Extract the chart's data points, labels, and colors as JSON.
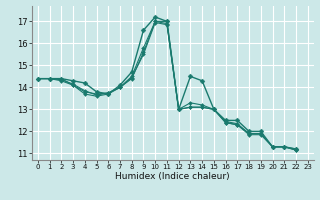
{
  "title": "",
  "xlabel": "Humidex (Indice chaleur)",
  "bg_color": "#cce8e8",
  "grid_color": "#ffffff",
  "line_color": "#1a7a6e",
  "xlim": [
    -0.5,
    23.5
  ],
  "ylim": [
    10.7,
    17.7
  ],
  "yticks": [
    11,
    12,
    13,
    14,
    15,
    16,
    17
  ],
  "xticks": [
    0,
    1,
    2,
    3,
    4,
    5,
    6,
    7,
    8,
    9,
    10,
    11,
    12,
    13,
    14,
    15,
    16,
    17,
    18,
    19,
    20,
    21,
    22,
    23
  ],
  "series": [
    [
      14.4,
      14.4,
      14.4,
      14.3,
      14.2,
      13.8,
      13.7,
      14.1,
      14.7,
      16.6,
      17.2,
      17.0,
      13.0,
      14.5,
      14.3,
      13.0,
      12.5,
      12.5,
      12.0,
      12.0,
      11.3,
      11.3,
      11.2,
      null
    ],
    [
      14.4,
      14.4,
      14.4,
      14.1,
      13.7,
      13.6,
      13.7,
      14.0,
      14.4,
      15.6,
      17.0,
      16.9,
      13.0,
      13.1,
      13.1,
      13.0,
      12.4,
      12.3,
      11.9,
      11.9,
      11.3,
      11.3,
      11.2,
      null
    ],
    [
      14.4,
      14.4,
      14.35,
      14.15,
      13.85,
      13.65,
      13.75,
      14.0,
      14.5,
      15.8,
      17.0,
      17.0,
      13.0,
      13.3,
      13.2,
      13.0,
      12.45,
      12.35,
      11.9,
      11.9,
      11.3,
      11.3,
      11.15,
      null
    ],
    [
      14.4,
      14.4,
      14.3,
      14.1,
      13.8,
      13.7,
      13.75,
      14.0,
      14.45,
      15.5,
      16.95,
      16.85,
      13.0,
      13.1,
      13.1,
      13.0,
      12.4,
      12.3,
      11.85,
      11.85,
      11.3,
      11.3,
      11.15,
      null
    ]
  ]
}
